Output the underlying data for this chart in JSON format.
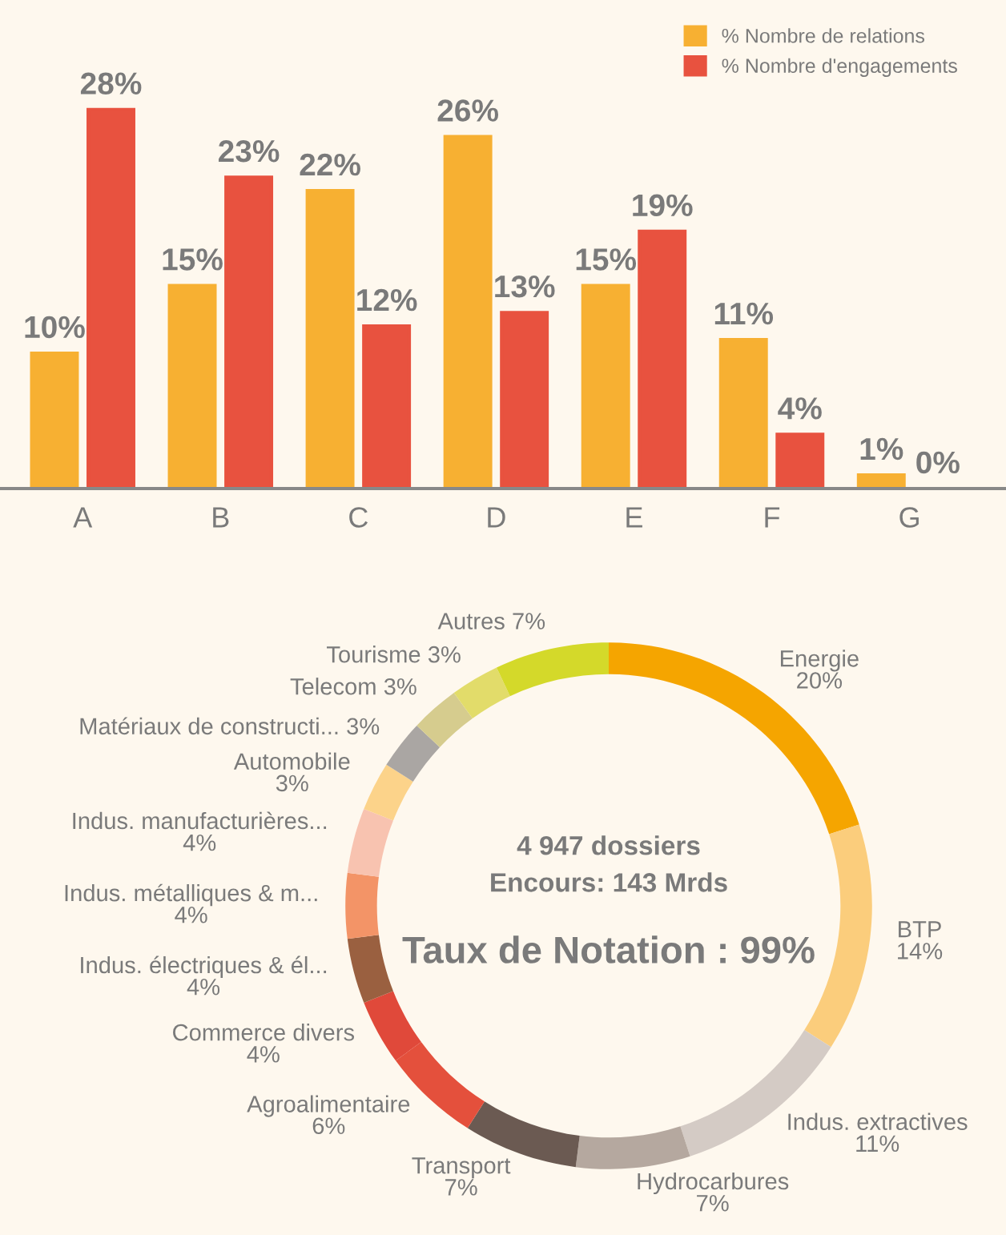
{
  "chart_data": [
    {
      "type": "bar",
      "categories": [
        "A",
        "B",
        "C",
        "D",
        "E",
        "F",
        "G"
      ],
      "series": [
        {
          "name": "% Nombre de relations",
          "color": "#f7b032",
          "values": [
            10,
            15,
            22,
            26,
            15,
            11,
            1
          ],
          "value_labels": [
            "10%",
            "15%",
            "22%",
            "26%",
            "15%",
            "11%",
            "1%"
          ]
        },
        {
          "name": "% Nombre d'engagements",
          "color": "#e8523f",
          "values": [
            28,
            23,
            12,
            13,
            19,
            4,
            0
          ],
          "value_labels": [
            "28%",
            "23%",
            "12%",
            "13%",
            "19%",
            "4%",
            "0%"
          ]
        }
      ],
      "legend": "top right",
      "grid": false,
      "tick_labels": "x"
    },
    {
      "type": "donut",
      "categories": [
        "Energie",
        "BTP",
        "Indus. extractives",
        "Hydrocarbures",
        "Transport",
        "Agroalimentaire",
        "Commerce divers",
        "Indus. électriques & él...",
        "Indus. métalliques & m...",
        "Indus. manufacturières...",
        "Automobile",
        "Matériaux de constructi...",
        "Telecom",
        "Tourisme",
        "Autres"
      ],
      "values": [
        20,
        14,
        11,
        7,
        7,
        6,
        4,
        4,
        4,
        4,
        3,
        3,
        3,
        3,
        7
      ],
      "value_labels": [
        "20%",
        "14%",
        "11%",
        "7%",
        "7%",
        "6%",
        "4%",
        "4%",
        "4%",
        "4%",
        "3%",
        "3%",
        "3%",
        "3%",
        "7%"
      ],
      "colors": [
        "#f5a500",
        "#fbcd7c",
        "#d4cbc5",
        "#b5a89f",
        "#6b5a52",
        "#e4503c",
        "#e0493a",
        "#9a6040",
        "#f39467",
        "#f8c3b0",
        "#fcd38a",
        "#aaa6a3",
        "#d6cc8e",
        "#e2dc6a",
        "#d4d92a"
      ],
      "annotations": [
        "4 947 dossiers",
        "Encours: 143 Mrds",
        "Taux de Notation : 99%"
      ]
    }
  ]
}
